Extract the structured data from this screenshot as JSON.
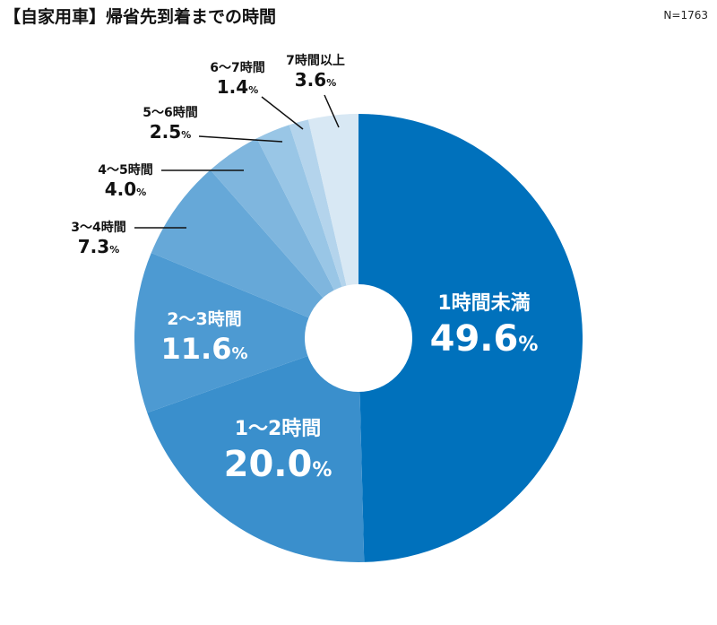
{
  "chart_data": {
    "type": "pie",
    "title": "【自家用車】帰省先到着までの時間",
    "note": "N=1763",
    "categories": [
      "1時間未満",
      "1～2時間",
      "2～3時間",
      "3～4時間",
      "4～5時間",
      "5～6時間",
      "6～7時間",
      "7時間以上"
    ],
    "values": [
      49.6,
      20.0,
      11.6,
      7.3,
      4.0,
      2.5,
      1.4,
      3.6
    ],
    "value_labels": [
      "49.6",
      "20.0",
      "11.6",
      "7.3",
      "4.0",
      "2.5",
      "1.4",
      "3.6"
    ],
    "unit": "%",
    "colors": [
      "#0071bc",
      "#3a8fcc",
      "#4d9ad2",
      "#66a8d8",
      "#7fb6de",
      "#99c6e6",
      "#b4d4ec",
      "#d8e8f4"
    ],
    "donut": true
  }
}
